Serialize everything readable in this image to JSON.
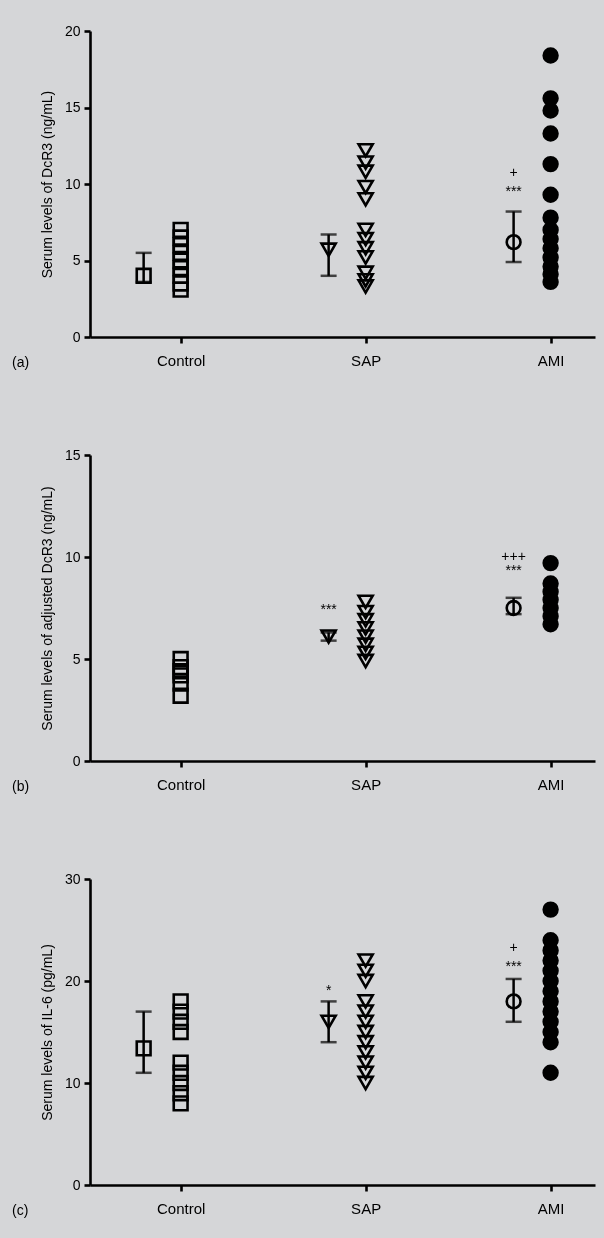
{
  "chart_data": [
    {
      "type": "scatter",
      "ylabel": "Serum levels of DcR3 (ng/mL)",
      "categories": [
        "Control",
        "SAP",
        "AMI"
      ],
      "ylim": [
        0,
        20
      ],
      "yticks": [
        0,
        5,
        10,
        15,
        20
      ],
      "grid": false,
      "series": [
        {
          "color": "#000000",
          "marker": "square",
          "x": [
            "Control",
            "Control",
            "Control",
            "Control",
            "Control",
            "Control",
            "Control",
            "Control",
            "Control"
          ],
          "values": [
            7.0,
            6.5,
            6.0,
            5.5,
            5.0,
            4.5,
            4.0,
            3.5,
            3.1
          ]
        },
        {
          "color": "#000000",
          "marker": "triangle",
          "x": [
            "SAP",
            "SAP",
            "SAP",
            "SAP",
            "SAP",
            "SAP",
            "SAP",
            "SAP",
            "SAP",
            "SAP",
            "SAP",
            "SAP"
          ],
          "values": [
            12.2,
            11.4,
            10.8,
            9.8,
            9.0,
            7.0,
            6.4,
            5.8,
            5.2,
            4.2,
            3.7,
            3.3
          ]
        },
        {
          "color": "#000000",
          "marker": "circle",
          "x": [
            "AMI",
            "AMI",
            "AMI",
            "AMI",
            "AMI",
            "AMI",
            "AMI",
            "AMI",
            "AMI",
            "AMI",
            "AMI",
            "AMI",
            "AMI",
            "AMI"
          ],
          "values": [
            18.4,
            15.6,
            14.8,
            13.3,
            11.3,
            9.3,
            7.8,
            7.0,
            6.4,
            5.8,
            5.2,
            4.6,
            4.1,
            3.6
          ]
        },
        {
          "color": "#000000",
          "marker": "square",
          "x": [
            "Control"
          ],
          "values": [
            4.0
          ],
          "errors": [
            [
              3.6,
              5.5
            ]
          ]
        },
        {
          "color": "#000000",
          "marker": "triangle",
          "x": [
            "SAP"
          ],
          "values": [
            5.7
          ],
          "errors": [
            [
              4.0,
              6.7
            ]
          ]
        },
        {
          "color": "#000000",
          "marker": "circle",
          "x": [
            "AMI"
          ],
          "values": [
            6.2
          ],
          "errors": [
            [
              4.9,
              8.2
            ]
          ]
        }
      ],
      "annotations": [
        {
          "text": "+",
          "x": "AMI",
          "y": 10.7
        },
        {
          "text": "***",
          "x": "AMI",
          "y": 9.5
        },
        "(a)"
      ]
    },
    {
      "type": "scatter",
      "ylabel": "Serum levels of adjusted DcR3 (ng/mL)",
      "categories": [
        "Control",
        "SAP",
        "AMI"
      ],
      "ylim": [
        0,
        15
      ],
      "yticks": [
        0,
        5,
        10,
        15
      ],
      "grid": false,
      "series": [
        {
          "color": "#000000",
          "marker": "square",
          "x": [
            "Control",
            "Control",
            "Control",
            "Control",
            "Control"
          ],
          "values": [
            5.0,
            4.6,
            4.2,
            3.8,
            3.2
          ]
        },
        {
          "color": "#000000",
          "marker": "triangle",
          "x": [
            "SAP",
            "SAP",
            "SAP",
            "SAP",
            "SAP",
            "SAP",
            "SAP",
            "SAP"
          ],
          "values": [
            7.8,
            7.3,
            6.9,
            6.5,
            6.1,
            5.7,
            5.3,
            4.9
          ]
        },
        {
          "color": "#000000",
          "marker": "circle",
          "x": [
            "AMI",
            "AMI",
            "AMI",
            "AMI",
            "AMI",
            "AMI",
            "AMI"
          ],
          "values": [
            9.7,
            8.7,
            8.3,
            7.9,
            7.5,
            7.1,
            6.7
          ]
        },
        {
          "color": "#000000",
          "marker": "square",
          "x": [
            "Control"
          ],
          "values": [
            4.4
          ]
        },
        {
          "color": "#000000",
          "marker": "triangle",
          "x": [
            "SAP"
          ],
          "values": [
            6.1
          ],
          "errors": [
            [
              5.9,
              6.3
            ]
          ]
        },
        {
          "color": "#000000",
          "marker": "circle",
          "x": [
            "AMI"
          ],
          "values": [
            7.5
          ],
          "errors": [
            [
              7.2,
              8.0
            ]
          ]
        }
      ],
      "annotations": [
        {
          "text": "***",
          "x": "SAP",
          "y": 7.4
        },
        {
          "text": "+++",
          "x": "AMI",
          "y": 10.0
        },
        {
          "text": "***",
          "x": "AMI",
          "y": 9.3
        },
        "(b)"
      ]
    },
    {
      "type": "scatter",
      "ylabel": "Serum levels of IL-6 (pg/mL)",
      "categories": [
        "Control",
        "SAP",
        "AMI"
      ],
      "ylim": [
        0,
        30
      ],
      "yticks": [
        0,
        10,
        20,
        30
      ],
      "grid": false,
      "series": [
        {
          "color": "#000000",
          "marker": "square",
          "x": [
            "Control",
            "Control",
            "Control",
            "Control",
            "Control",
            "Control",
            "Control",
            "Control",
            "Control"
          ],
          "values": [
            18,
            17,
            16,
            15,
            12,
            11,
            10,
            9,
            8
          ]
        },
        {
          "color": "#000000",
          "marker": "triangle",
          "x": [
            "SAP",
            "SAP",
            "SAP",
            "SAP",
            "SAP",
            "SAP",
            "SAP",
            "SAP",
            "SAP",
            "SAP",
            "SAP",
            "SAP"
          ],
          "values": [
            22,
            21,
            20,
            18,
            17,
            16,
            15,
            14,
            13,
            12,
            11,
            10
          ]
        },
        {
          "color": "#000000",
          "marker": "circle",
          "x": [
            "AMI",
            "AMI",
            "AMI",
            "AMI",
            "AMI",
            "AMI",
            "AMI",
            "AMI",
            "AMI",
            "AMI",
            "AMI",
            "AMI",
            "AMI"
          ],
          "values": [
            27,
            24,
            23,
            22,
            21,
            20,
            19,
            18,
            17,
            16,
            15,
            14,
            11
          ]
        },
        {
          "color": "#000000",
          "marker": "square",
          "x": [
            "Control"
          ],
          "values": [
            13.4
          ],
          "errors": [
            [
              11.0,
              17.0
            ]
          ]
        },
        {
          "color": "#000000",
          "marker": "triangle",
          "x": [
            "SAP"
          ],
          "values": [
            16.0
          ],
          "errors": [
            [
              14.0,
              18.0
            ]
          ]
        },
        {
          "color": "#000000",
          "marker": "circle",
          "x": [
            "AMI"
          ],
          "values": [
            18.0
          ],
          "errors": [
            [
              16.0,
              20.2
            ]
          ]
        }
      ],
      "annotations": [
        {
          "text": "*",
          "x": "SAP",
          "y": 19.0
        },
        {
          "text": "+",
          "x": "AMI",
          "y": 23.2
        },
        {
          "text": "***",
          "x": "AMI",
          "y": 21.4
        },
        "(c)"
      ]
    }
  ]
}
